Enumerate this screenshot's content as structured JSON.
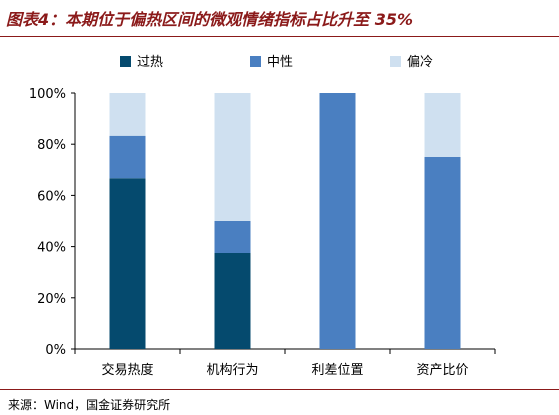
{
  "title": "图表4：本期位于偏热区间的微观情绪指标占比升至 35%",
  "source": "来源：Wind，国金证券研究所",
  "chart_data": {
    "type": "bar",
    "stacked": true,
    "categories": [
      "交易热度",
      "机构行为",
      "利差位置",
      "资产比价"
    ],
    "series": [
      {
        "name": "过热",
        "color": "#054a6e",
        "values": [
          66.7,
          37.5,
          0,
          0
        ]
      },
      {
        "name": "中性",
        "color": "#4a7fc1",
        "values": [
          16.6,
          12.5,
          100,
          75
        ]
      },
      {
        "name": "偏冷",
        "color": "#cfe0f0",
        "values": [
          16.7,
          50,
          0,
          25
        ]
      }
    ],
    "ylim": [
      0,
      100
    ],
    "yticks": [
      "0%",
      "20%",
      "40%",
      "60%",
      "80%",
      "100%"
    ],
    "legend_position": "top",
    "grid": false
  }
}
